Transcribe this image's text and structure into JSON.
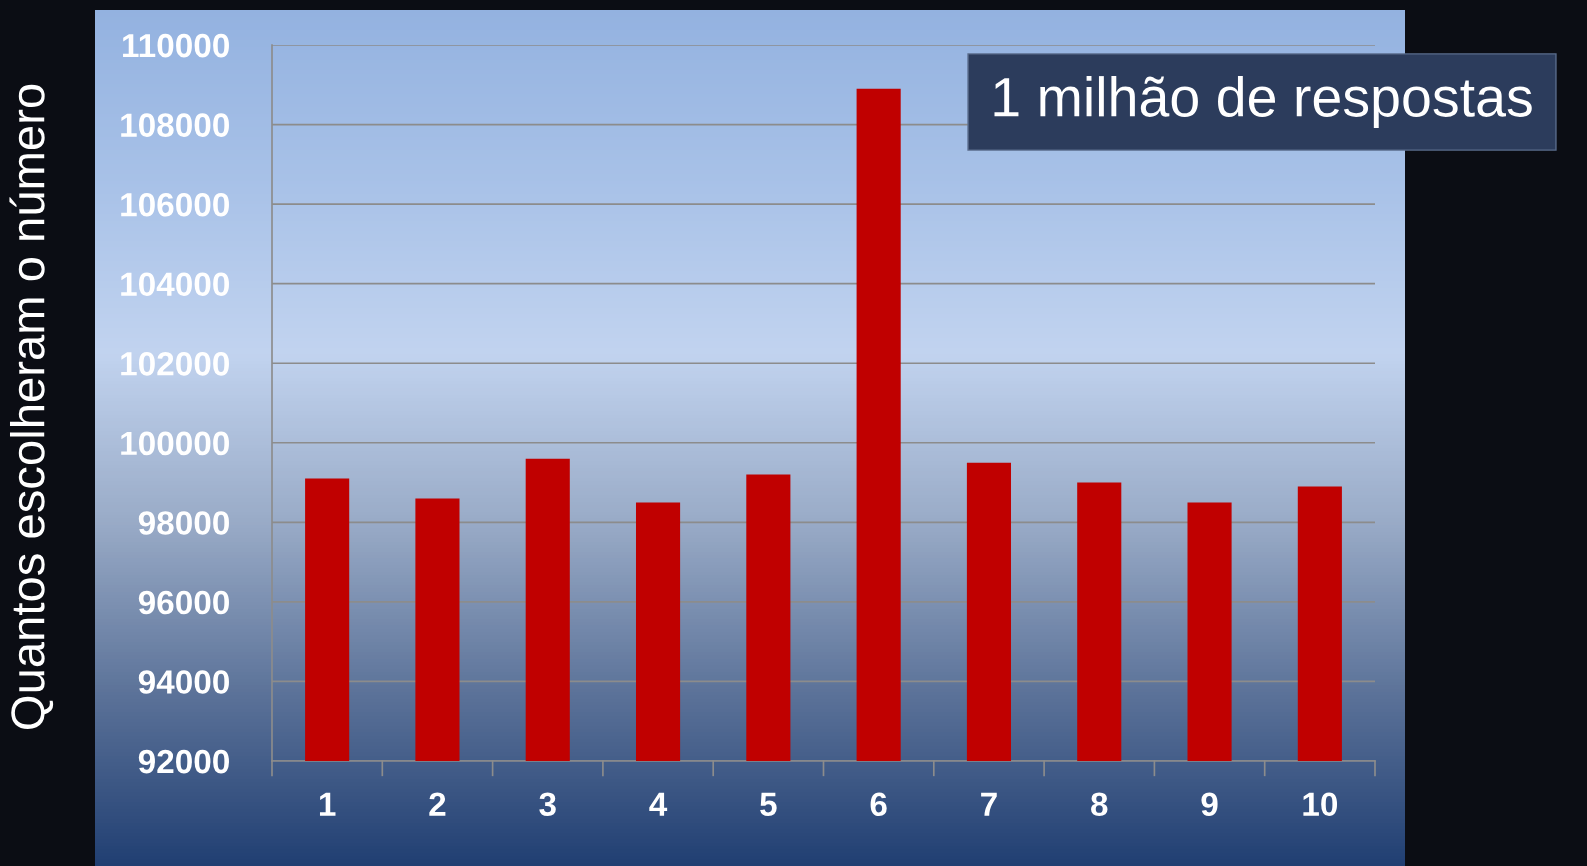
{
  "chart_data": {
    "type": "bar",
    "categories": [
      "1",
      "2",
      "3",
      "4",
      "5",
      "6",
      "7",
      "8",
      "9",
      "10"
    ],
    "values": [
      99100,
      98600,
      99600,
      98500,
      99200,
      108900,
      99500,
      99000,
      98500,
      98900
    ],
    "color": "#c00000",
    "ylabel": "Quantos escolheram o número",
    "annotations": [
      "1 milhão de respostas"
    ],
    "ylim": [
      92000,
      110000
    ],
    "yticks": [
      92000,
      94000,
      96000,
      98000,
      100000,
      102000,
      104000,
      106000,
      108000,
      110000
    ],
    "grid": "y"
  }
}
